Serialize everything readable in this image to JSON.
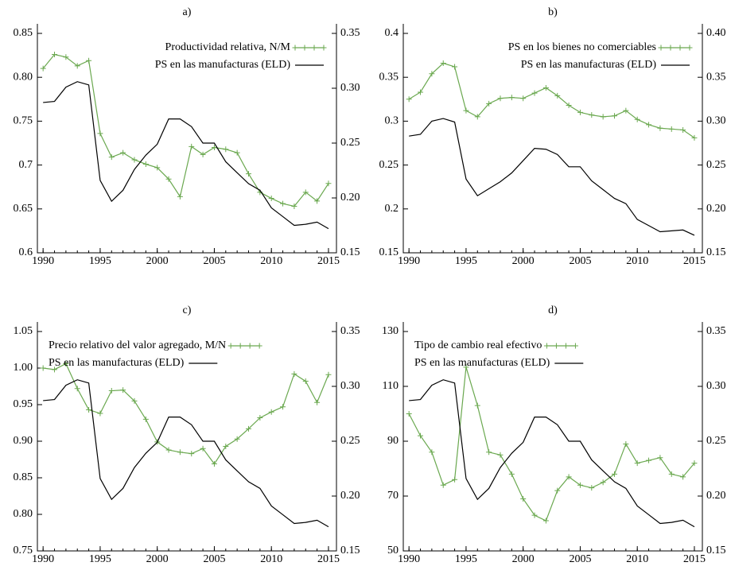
{
  "chart_data": [
    {
      "type": "line",
      "title": "a)",
      "x": [
        1990,
        1991,
        1992,
        1993,
        1994,
        1995,
        1996,
        1997,
        1998,
        1999,
        2000,
        2001,
        2002,
        2003,
        2004,
        2005,
        2006,
        2007,
        2008,
        2009,
        2010,
        2011,
        2012,
        2013,
        2014,
        2015
      ],
      "xlim": [
        1989.5,
        2015.7
      ],
      "xticks": [
        1990,
        1995,
        2000,
        2005,
        2010,
        2015
      ],
      "ylim": [
        0.6,
        0.85
      ],
      "yticks": [
        0.6,
        0.65,
        0.7,
        0.75,
        {
          "value": 0.8,
          "label": "0.80"
        },
        0.85
      ],
      "y2lim": [
        0.15,
        0.35
      ],
      "y2ticks": [
        0.15,
        {
          "value": 0.2,
          "label": "0.20"
        },
        0.25,
        {
          "value": 0.3,
          "label": "0.30"
        },
        0.35
      ],
      "legend": "upper right",
      "series": [
        {
          "name": "Productividad relativa, N/M",
          "color": "#6aa84f",
          "marker": "+",
          "values": [
            0.81,
            0.826,
            0.823,
            0.813,
            0.819,
            0.736,
            0.709,
            0.714,
            0.706,
            0.701,
            0.697,
            0.684,
            0.664,
            0.721,
            0.712,
            0.72,
            0.718,
            0.714,
            0.69,
            0.669,
            0.662,
            0.656,
            0.653,
            0.669,
            0.659,
            0.679
          ]
        },
        {
          "name": "PS en las manufacturas (ELD)",
          "color": "#000000",
          "axis": "y2",
          "values": [
            0.287,
            0.288,
            0.301,
            0.306,
            0.303,
            0.216,
            0.197,
            0.207,
            0.226,
            0.239,
            0.249,
            0.272,
            0.272,
            0.265,
            0.25,
            0.25,
            0.233,
            0.223,
            0.213,
            0.207,
            0.191,
            0.183,
            0.175,
            0.176,
            0.178,
            0.172
          ]
        }
      ]
    },
    {
      "type": "line",
      "title": "b)",
      "x": [
        1990,
        1991,
        1992,
        1993,
        1994,
        1995,
        1996,
        1997,
        1998,
        1999,
        2000,
        2001,
        2002,
        2003,
        2004,
        2005,
        2006,
        2007,
        2008,
        2009,
        2010,
        2011,
        2012,
        2013,
        2014,
        2015
      ],
      "xlim": [
        1989.5,
        2015.7
      ],
      "xticks": [
        1990,
        1995,
        2000,
        2005,
        2010,
        2015
      ],
      "ylim": [
        0.15,
        0.4
      ],
      "yticks": [
        0.15,
        0.2,
        0.25,
        0.3,
        0.35,
        0.4
      ],
      "y2lim": [
        0.15,
        0.4
      ],
      "y2ticks": [
        0.15,
        {
          "value": 0.2,
          "label": "0.20"
        },
        0.25,
        {
          "value": 0.3,
          "label": "0.30"
        },
        0.35,
        {
          "value": 0.4,
          "label": "0.40"
        }
      ],
      "legend": "upper right",
      "series": [
        {
          "name": "PS en los bienes no comerciables",
          "color": "#6aa84f",
          "marker": "+",
          "values": [
            0.325,
            0.333,
            0.354,
            0.366,
            0.362,
            0.312,
            0.305,
            0.32,
            0.326,
            0.327,
            0.326,
            0.332,
            0.338,
            0.329,
            0.318,
            0.31,
            0.307,
            0.305,
            0.306,
            0.312,
            0.302,
            0.296,
            0.292,
            0.291,
            0.29,
            0.281
          ]
        },
        {
          "name": "PS en las manufacturas (ELD)",
          "color": "#000000",
          "axis": "y2",
          "values": [
            0.283,
            0.285,
            0.3,
            0.303,
            0.299,
            0.234,
            0.215,
            0.223,
            0.231,
            0.241,
            0.255,
            0.269,
            0.268,
            0.262,
            0.248,
            0.248,
            0.232,
            0.222,
            0.212,
            0.206,
            0.188,
            0.181,
            0.174,
            0.175,
            0.176,
            0.17
          ]
        }
      ]
    },
    {
      "type": "line",
      "title": "c)",
      "x": [
        1990,
        1991,
        1992,
        1993,
        1994,
        1995,
        1996,
        1997,
        1998,
        1999,
        2000,
        2001,
        2002,
        2003,
        2004,
        2005,
        2006,
        2007,
        2008,
        2009,
        2010,
        2011,
        2012,
        2013,
        2014,
        2015
      ],
      "xlim": [
        1989.5,
        2015.7
      ],
      "xticks": [
        1990,
        1995,
        2000,
        2005,
        2010,
        2015
      ],
      "ylim": [
        0.75,
        1.05
      ],
      "yticks": [
        0.75,
        {
          "value": 0.8,
          "label": "0.80"
        },
        0.85,
        {
          "value": 0.9,
          "label": "0.90"
        },
        0.95,
        {
          "value": 1.0,
          "label": "1.00"
        },
        1.05
      ],
      "y2lim": [
        0.15,
        0.35
      ],
      "y2ticks": [
        0.15,
        {
          "value": 0.2,
          "label": "0.20"
        },
        0.25,
        {
          "value": 0.3,
          "label": "0.30"
        },
        0.35
      ],
      "legend": "upper left",
      "series": [
        {
          "name": "Precio relativo del valor agregado, M/N",
          "color": "#6aa84f",
          "marker": "+",
          "values": [
            1.0,
            0.998,
            1.006,
            0.972,
            0.943,
            0.938,
            0.969,
            0.97,
            0.955,
            0.93,
            0.899,
            0.888,
            0.885,
            0.883,
            0.89,
            0.869,
            0.893,
            0.903,
            0.917,
            0.932,
            0.94,
            0.947,
            0.992,
            0.982,
            0.953,
            0.991
          ]
        },
        {
          "name": "PS en las manufacturas (ELD)",
          "color": "#000000",
          "axis": "y2",
          "values": [
            0.287,
            0.288,
            0.301,
            0.306,
            0.303,
            0.216,
            0.197,
            0.207,
            0.226,
            0.239,
            0.249,
            0.272,
            0.272,
            0.265,
            0.25,
            0.25,
            0.233,
            0.223,
            0.213,
            0.207,
            0.191,
            0.183,
            0.175,
            0.176,
            0.178,
            0.172
          ]
        }
      ]
    },
    {
      "type": "line",
      "title": "d)",
      "x": [
        1990,
        1991,
        1992,
        1993,
        1994,
        1995,
        1996,
        1997,
        1998,
        1999,
        2000,
        2001,
        2002,
        2003,
        2004,
        2005,
        2006,
        2007,
        2008,
        2009,
        2010,
        2011,
        2012,
        2013,
        2014,
        2015
      ],
      "xlim": [
        1989.5,
        2015.7
      ],
      "xticks": [
        1990,
        1995,
        2000,
        2005,
        2010,
        2015
      ],
      "ylim": [
        50,
        130
      ],
      "yticks": [
        50,
        70,
        90,
        110,
        130
      ],
      "y2lim": [
        0.15,
        0.35
      ],
      "y2ticks": [
        0.15,
        {
          "value": 0.2,
          "label": "0.20"
        },
        0.25,
        {
          "value": 0.3,
          "label": "0.30"
        },
        0.35
      ],
      "legend": "upper left",
      "series": [
        {
          "name": "Tipo de cambio real efectivo",
          "color": "#6aa84f",
          "marker": "+",
          "values": [
            100,
            92,
            86,
            74,
            76,
            117,
            103,
            86,
            85,
            78,
            69,
            63,
            61,
            72,
            77,
            74,
            73,
            75,
            78,
            89,
            82,
            83,
            84,
            78,
            77,
            82
          ]
        },
        {
          "name": "PS en las manufacturas (ELD)",
          "color": "#000000",
          "axis": "y2",
          "values": [
            0.287,
            0.288,
            0.301,
            0.306,
            0.303,
            0.216,
            0.197,
            0.207,
            0.226,
            0.239,
            0.249,
            0.272,
            0.272,
            0.265,
            0.25,
            0.25,
            0.233,
            0.223,
            0.213,
            0.207,
            0.191,
            0.183,
            0.175,
            0.176,
            0.178,
            0.172
          ]
        }
      ]
    }
  ]
}
